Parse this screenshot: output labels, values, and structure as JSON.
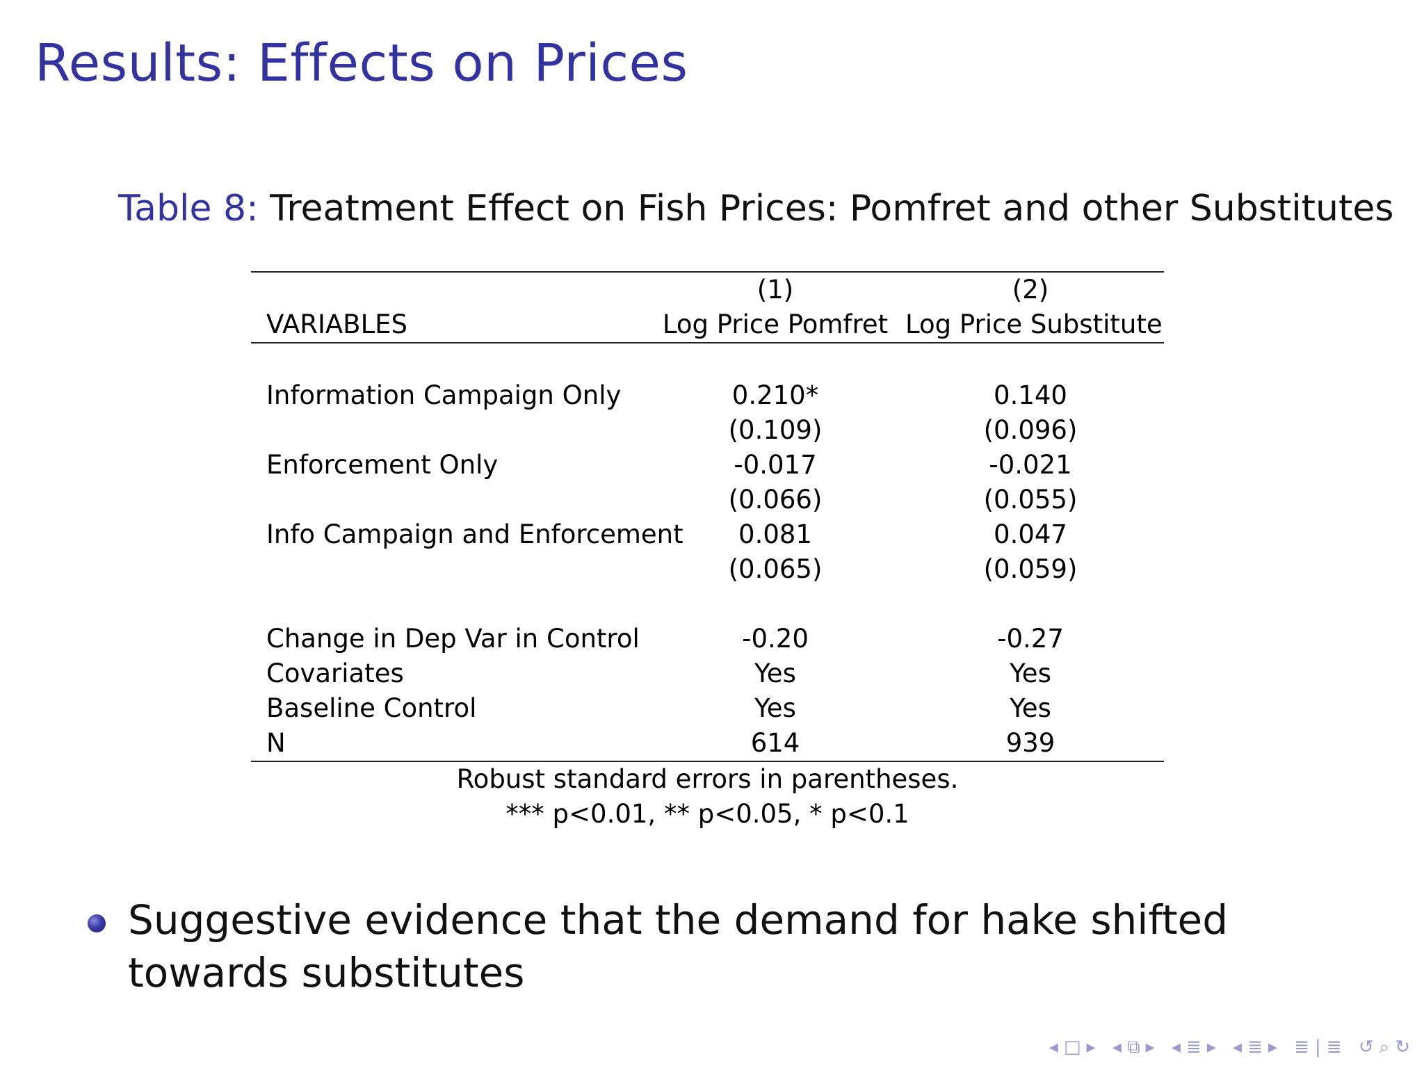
{
  "frame": {
    "title": "Results: Effects on Prices"
  },
  "table": {
    "caption_label": "Table 8:",
    "caption_text": "Treatment Effect on Fish Prices: Pomfret and other Substitutes",
    "header": {
      "col_numbers": [
        "(1)",
        "(2)"
      ],
      "var_header": "VARIABLES",
      "col_titles": [
        "Log Price Pomfret",
        "Log Price Substitute"
      ]
    },
    "rows": [
      {
        "var": "Information Campaign Only",
        "c1": "0.210*",
        "c2": "0.140"
      },
      {
        "var": "",
        "c1": "(0.109)",
        "c2": "(0.096)"
      },
      {
        "var": "Enforcement Only",
        "c1": "-0.017",
        "c2": "-0.021"
      },
      {
        "var": "",
        "c1": "(0.066)",
        "c2": "(0.055)"
      },
      {
        "var": "Info Campaign and Enforcement",
        "c1": "0.081",
        "c2": "0.047"
      },
      {
        "var": "",
        "c1": "(0.065)",
        "c2": "(0.059)"
      }
    ],
    "stats_rows": [
      {
        "var": "Change in Dep Var in Control",
        "c1": "-0.20",
        "c2": "-0.27"
      },
      {
        "var": "Covariates",
        "c1": "Yes",
        "c2": "Yes"
      },
      {
        "var": "Baseline Control",
        "c1": "Yes",
        "c2": "Yes"
      },
      {
        "var": "N",
        "c1": "614",
        "c2": "939"
      }
    ],
    "notes": [
      "Robust standard errors in parentheses.",
      "*** p<0.01, ** p<0.05, * p<0.1"
    ]
  },
  "bullets": [
    "Suggestive evidence that the demand for hake shifted towards substitutes"
  ],
  "nav": {
    "color": "#9b9bcf"
  },
  "colors": {
    "title": "#33339f",
    "caption_label": "#33339f"
  }
}
